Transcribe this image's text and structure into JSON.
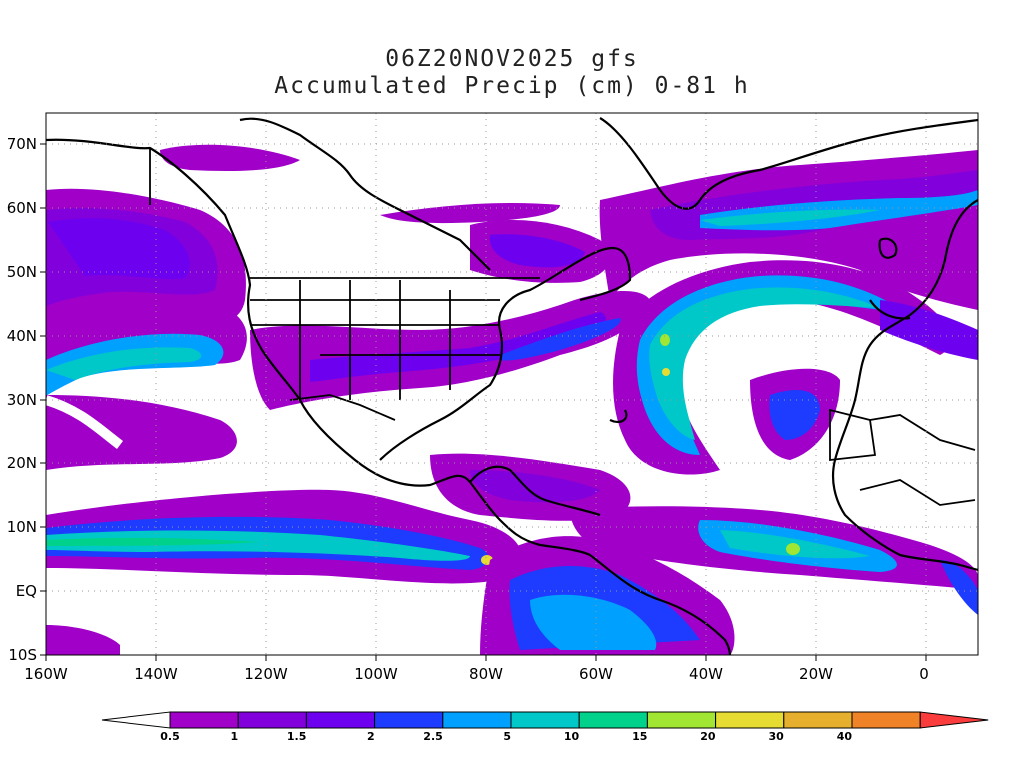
{
  "title": {
    "line1": "06Z20NOV2025 gfs",
    "line2": "Accumulated Precip (cm) 0-81 h"
  },
  "map": {
    "lon_ticks": [
      "160W",
      "140W",
      "120W",
      "100W",
      "80W",
      "60W",
      "40W",
      "20W",
      "0"
    ],
    "lat_ticks": [
      "70N",
      "60N",
      "50N",
      "40N",
      "30N",
      "20N",
      "10N",
      "EQ",
      "10S"
    ],
    "lon_range": [
      -160,
      10
    ],
    "lat_range": [
      -10,
      75
    ]
  },
  "colorbar": {
    "labels": [
      "0.5",
      "1",
      "1.5",
      "2",
      "2.5",
      "5",
      "10",
      "15",
      "20",
      "30",
      "40"
    ],
    "colors": [
      "#a000c8",
      "#8200dc",
      "#6e00f0",
      "#1e3cff",
      "#00a0ff",
      "#00c8c8",
      "#00d28c",
      "#a0e632",
      "#e6dc32",
      "#e6af2d",
      "#f08228",
      "#fa3c3c"
    ]
  }
}
